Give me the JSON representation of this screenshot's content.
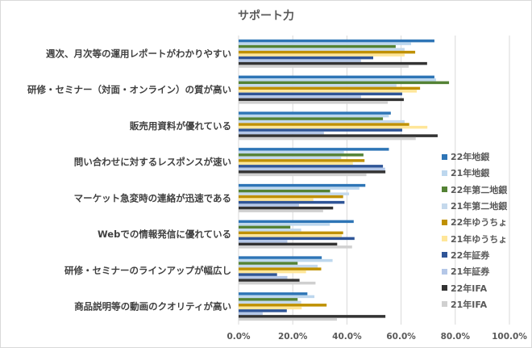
{
  "chart_data": {
    "type": "bar",
    "orientation": "horizontal",
    "title": "サポート力",
    "xlabel": "",
    "ylabel": "",
    "xlim": [
      0,
      100
    ],
    "x_ticks": [
      0,
      20,
      40,
      60,
      80,
      100
    ],
    "x_tick_labels": [
      "0.0%",
      "20.0%",
      "40.0%",
      "60.0%",
      "80.0%",
      "100.0%"
    ],
    "grid": "vertical",
    "legend_position": "right",
    "categories": [
      "週次、月次等の運用レポートがわかりやすい",
      "研修・セミナー（対面・オンライン）の質が高い",
      "販売用資料が優れている",
      "問い合わせに対するレスポンスが速い",
      "マーケット急変時の連絡が迅速である",
      "Webでの情報発信に優れている",
      "研修・セミナーのラインアップが幅広し",
      "商品説明等の動画のクオリティが高い"
    ],
    "series": [
      {
        "name": "22年地銀",
        "color": "#2e75b6",
        "values": [
          72.3,
          72.3,
          56.2,
          55.5,
          46.8,
          42.5,
          30.7,
          25.4
        ]
      },
      {
        "name": "21年地銀",
        "color": "#bdd7ee",
        "values": [
          63.7,
          72.9,
          55.5,
          38.9,
          44.6,
          33.7,
          34.7,
          28.0
        ]
      },
      {
        "name": "22年第二地銀",
        "color": "#548235",
        "values": [
          58.0,
          77.7,
          53.3,
          46.1,
          33.8,
          19.1,
          21.8,
          21.8
        ]
      },
      {
        "name": "21年第二地銀",
        "color": "#c5d9ec",
        "values": [
          61.3,
          58.3,
          61.3,
          37.9,
          40.8,
          23.1,
          29.2,
          23.1
        ]
      },
      {
        "name": "22年ゆうちょ",
        "color": "#bf9000",
        "values": [
          65.2,
          67.0,
          63.0,
          46.5,
          38.6,
          38.6,
          30.5,
          32.5
        ]
      },
      {
        "name": "21年ゆうちょ",
        "color": "#ffe699",
        "values": [
          61.3,
          65.8,
          69.7,
          42.2,
          27.6,
          38.1,
          24.9,
          23.3
        ]
      },
      {
        "name": "22年証券",
        "color": "#2f5597",
        "values": [
          49.7,
          60.4,
          60.4,
          53.3,
          39.1,
          42.8,
          14.2,
          17.8
        ]
      },
      {
        "name": "21年証券",
        "color": "#b4c7e7",
        "values": [
          45.2,
          45.2,
          31.5,
          54.1,
          22.3,
          18.0,
          18.0,
          8.9
        ]
      },
      {
        "name": "22年IFA",
        "color": "#333333",
        "values": [
          69.6,
          61.0,
          73.5,
          54.2,
          34.9,
          36.4,
          22.5,
          54.2
        ]
      },
      {
        "name": "21年IFA",
        "color": "#d0d0d0",
        "values": [
          62.8,
          55.1,
          65.4,
          47.2,
          31.2,
          41.9,
          28.4,
          36.3
        ]
      }
    ]
  }
}
